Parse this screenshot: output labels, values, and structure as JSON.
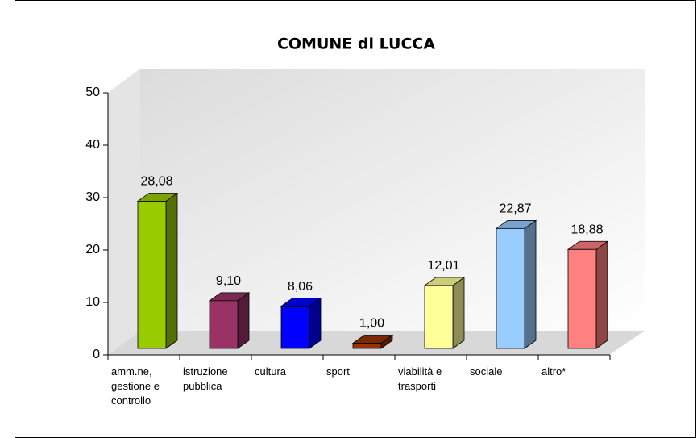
{
  "chart_data": {
    "type": "bar",
    "title": "COMUNE di LUCCA",
    "categories": [
      "amm.ne, gestione e controllo",
      "istruzione pubblica",
      "cultura",
      "sport",
      "viabilità e trasporti",
      "sociale",
      "altro*"
    ],
    "values": [
      28.08,
      9.1,
      8.06,
      1.0,
      12.01,
      22.87,
      18.88
    ],
    "value_labels": [
      "28,08",
      "9,10",
      "8,06",
      "1,00",
      "12,01",
      "22,87",
      "18,88"
    ],
    "colors": [
      "#99cc00",
      "#993366",
      "#0000ff",
      "#993300",
      "#ffff99",
      "#99ccff",
      "#ff8080"
    ],
    "ylim": [
      0,
      50
    ],
    "yticks": [
      0,
      10,
      20,
      30,
      40,
      50
    ]
  }
}
